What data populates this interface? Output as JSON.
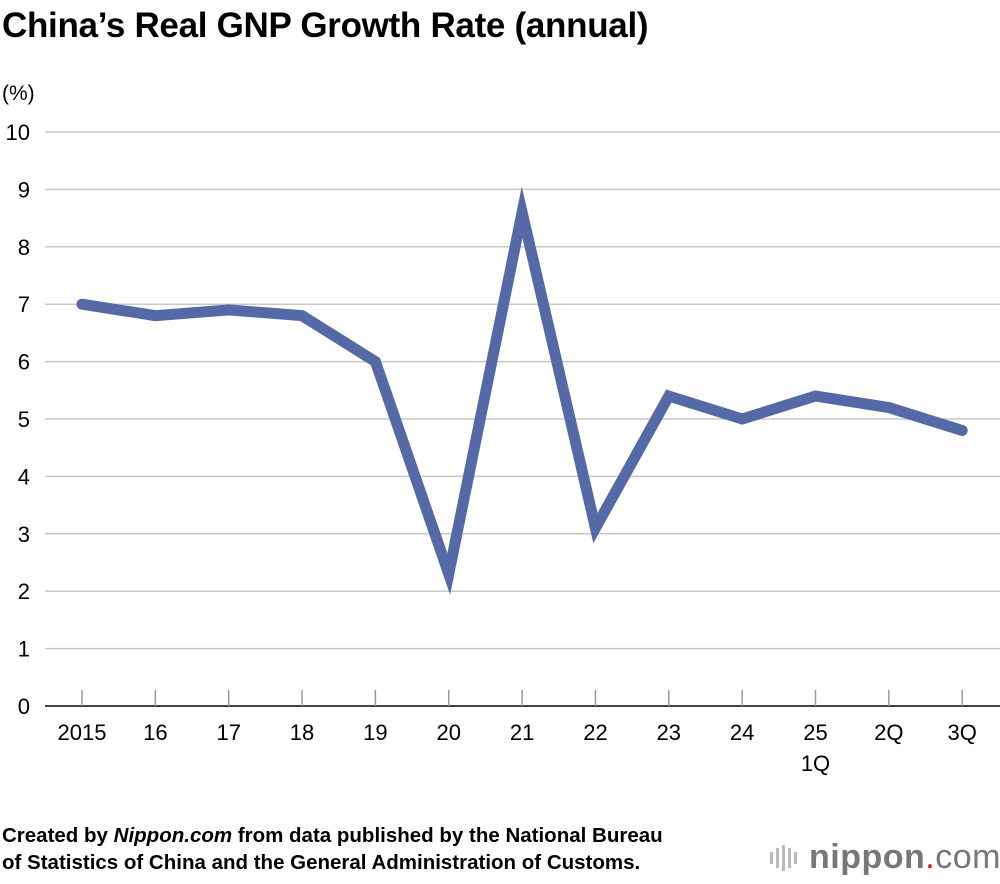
{
  "chart_data": {
    "type": "line",
    "title": "China’s Real GNP Growth Rate (annual)",
    "ylabel": "(%)",
    "ylim": [
      0,
      10
    ],
    "yticks": [
      "0",
      "1",
      "2",
      "3",
      "4",
      "5",
      "6",
      "7",
      "8",
      "9",
      "10"
    ],
    "grid": true,
    "categories": [
      "2015",
      "16",
      "17",
      "18",
      "19",
      "20",
      "21",
      "22",
      "23",
      "24",
      "25\n1Q",
      "2Q",
      "3Q"
    ],
    "category_labels": [
      [
        "2015"
      ],
      [
        "16"
      ],
      [
        "17"
      ],
      [
        "18"
      ],
      [
        "19"
      ],
      [
        "20"
      ],
      [
        "21"
      ],
      [
        "22"
      ],
      [
        "23"
      ],
      [
        "24"
      ],
      [
        "25",
        "1Q"
      ],
      [
        "2Q"
      ],
      [
        "3Q"
      ]
    ],
    "series": [
      {
        "values": [
          7.0,
          6.8,
          6.9,
          6.8,
          6.0,
          2.3,
          8.6,
          3.1,
          5.4,
          5.0,
          5.4,
          5.2,
          4.8
        ],
        "color": "#5569a6"
      }
    ]
  },
  "source": {
    "prefix": "Created by ",
    "site": "Nippon.com",
    "rest1": " from data published by the National Bureau",
    "rest2": "of Statistics of China and the General Administration of Customs."
  },
  "logo": {
    "text_bold": "nippon",
    "dot": ".",
    "text_light": "com"
  }
}
